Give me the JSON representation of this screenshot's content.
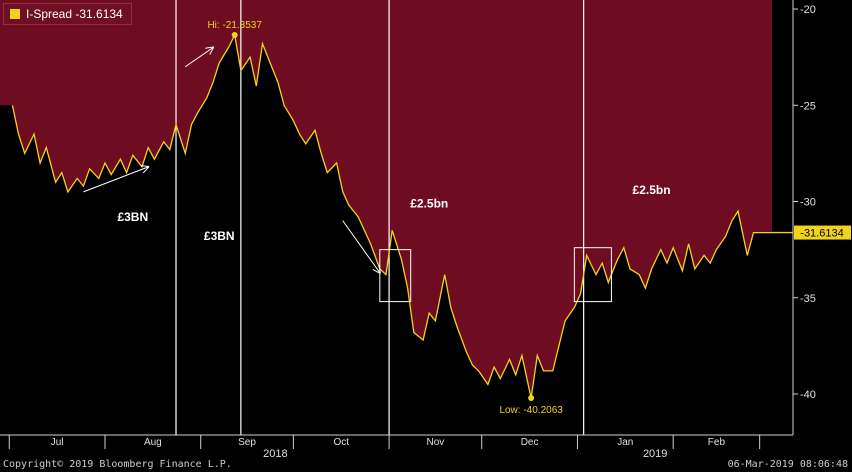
{
  "legend": {
    "label": "I-Spread -31.6134",
    "color": "#f2d31b"
  },
  "footer": {
    "copyright": "Copyright© 2019 Bloomberg Finance L.P.",
    "timestamp": "06-Mar-2019 08:06:48"
  },
  "colors": {
    "fill": "#6e0d22",
    "line": "#f2d31b",
    "background": "#000000",
    "annotation": "#ffffff"
  },
  "chart_data": {
    "type": "area",
    "title": "",
    "xlabel": "",
    "ylabel": "",
    "y_axis_side": "right",
    "ylim": [
      -41,
      -20
    ],
    "y_ticks": [
      -20,
      -25,
      -30,
      -35,
      -40
    ],
    "x_ticks": [
      "Jul",
      "Aug",
      "Sep",
      "Oct",
      "Nov",
      "Dec",
      "Jan",
      "Feb"
    ],
    "year_labels": [
      {
        "label": "2018",
        "after_tick": "Sep"
      },
      {
        "label": "2019",
        "after_tick": "Jan"
      }
    ],
    "last_value": -31.6134,
    "last_value_label": "-31.6134",
    "high": {
      "label": "Hi: -21.3537",
      "value": -21.3537,
      "date": "2018-09-12"
    },
    "low": {
      "label": "Low: -40.2063",
      "value": -40.2063,
      "date": "2018-12-17"
    },
    "series": [
      {
        "values": [
          [
            "2018-07-02",
            -25.0
          ],
          [
            "2018-07-04",
            -26.5
          ],
          [
            "2018-07-06",
            -27.5
          ],
          [
            "2018-07-09",
            -26.5
          ],
          [
            "2018-07-11",
            -28.0
          ],
          [
            "2018-07-13",
            -27.2
          ],
          [
            "2018-07-16",
            -29.0
          ],
          [
            "2018-07-18",
            -28.5
          ],
          [
            "2018-07-20",
            -29.5
          ],
          [
            "2018-07-23",
            -28.8
          ],
          [
            "2018-07-25",
            -29.2
          ],
          [
            "2018-07-27",
            -28.3
          ],
          [
            "2018-07-30",
            -28.8
          ],
          [
            "2018-08-01",
            -28.0
          ],
          [
            "2018-08-03",
            -28.6
          ],
          [
            "2018-08-06",
            -27.8
          ],
          [
            "2018-08-08",
            -28.5
          ],
          [
            "2018-08-10",
            -27.6
          ],
          [
            "2018-08-13",
            -28.2
          ],
          [
            "2018-08-15",
            -27.2
          ],
          [
            "2018-08-17",
            -27.8
          ],
          [
            "2018-08-20",
            -26.9
          ],
          [
            "2018-08-22",
            -27.3
          ],
          [
            "2018-08-24",
            -26.0
          ],
          [
            "2018-08-27",
            -27.5
          ],
          [
            "2018-08-29",
            -26.0
          ],
          [
            "2018-08-31",
            -25.4
          ],
          [
            "2018-09-03",
            -24.6
          ],
          [
            "2018-09-05",
            -23.8
          ],
          [
            "2018-09-07",
            -22.8
          ],
          [
            "2018-09-10",
            -22.0
          ],
          [
            "2018-09-12",
            -21.3537
          ],
          [
            "2018-09-14",
            -23.2
          ],
          [
            "2018-09-17",
            -22.5
          ],
          [
            "2018-09-19",
            -24.0
          ],
          [
            "2018-09-21",
            -21.8
          ],
          [
            "2018-09-24",
            -23.0
          ],
          [
            "2018-09-26",
            -23.8
          ],
          [
            "2018-09-28",
            -25.0
          ],
          [
            "2018-10-01",
            -25.8
          ],
          [
            "2018-10-03",
            -26.5
          ],
          [
            "2018-10-05",
            -27.0
          ],
          [
            "2018-10-08",
            -26.3
          ],
          [
            "2018-10-10",
            -27.5
          ],
          [
            "2018-10-12",
            -28.5
          ],
          [
            "2018-10-15",
            -28.0
          ],
          [
            "2018-10-17",
            -29.5
          ],
          [
            "2018-10-19",
            -30.2
          ],
          [
            "2018-10-22",
            -30.8
          ],
          [
            "2018-10-24",
            -31.5
          ],
          [
            "2018-10-26",
            -32.2
          ],
          [
            "2018-10-29",
            -33.5
          ],
          [
            "2018-10-31",
            -33.8
          ],
          [
            "2018-11-02",
            -31.5
          ],
          [
            "2018-11-05",
            -33.0
          ],
          [
            "2018-11-07",
            -34.5
          ],
          [
            "2018-11-09",
            -36.8
          ],
          [
            "2018-11-12",
            -37.2
          ],
          [
            "2018-11-14",
            -35.8
          ],
          [
            "2018-11-16",
            -36.2
          ],
          [
            "2018-11-19",
            -33.8
          ],
          [
            "2018-11-21",
            -35.5
          ],
          [
            "2018-11-23",
            -36.5
          ],
          [
            "2018-11-26",
            -37.8
          ],
          [
            "2018-11-28",
            -38.5
          ],
          [
            "2018-11-30",
            -38.8
          ],
          [
            "2018-12-03",
            -39.5
          ],
          [
            "2018-12-05",
            -38.6
          ],
          [
            "2018-12-07",
            -39.2
          ],
          [
            "2018-12-10",
            -38.2
          ],
          [
            "2018-12-12",
            -39.0
          ],
          [
            "2018-12-14",
            -38.0
          ],
          [
            "2018-12-17",
            -40.2063
          ],
          [
            "2018-12-19",
            -38.0
          ],
          [
            "2018-12-21",
            -38.8
          ],
          [
            "2018-12-24",
            -38.8
          ],
          [
            "2018-12-26",
            -37.5
          ],
          [
            "2018-12-28",
            -36.2
          ],
          [
            "2018-12-31",
            -35.5
          ],
          [
            "2019-01-02",
            -34.8
          ],
          [
            "2019-01-04",
            -32.8
          ],
          [
            "2019-01-07",
            -33.8
          ],
          [
            "2019-01-09",
            -33.2
          ],
          [
            "2019-01-11",
            -34.2
          ],
          [
            "2019-01-14",
            -33.0
          ],
          [
            "2019-01-16",
            -32.4
          ],
          [
            "2019-01-18",
            -33.5
          ],
          [
            "2019-01-21",
            -33.8
          ],
          [
            "2019-01-23",
            -34.5
          ],
          [
            "2019-01-25",
            -33.5
          ],
          [
            "2019-01-28",
            -32.5
          ],
          [
            "2019-01-30",
            -33.2
          ],
          [
            "2019-02-01",
            -32.4
          ],
          [
            "2019-02-04",
            -33.6
          ],
          [
            "2019-02-06",
            -32.2
          ],
          [
            "2019-02-08",
            -33.5
          ],
          [
            "2019-02-11",
            -32.8
          ],
          [
            "2019-02-13",
            -33.2
          ],
          [
            "2019-02-15",
            -32.5
          ],
          [
            "2019-02-18",
            -31.8
          ],
          [
            "2019-02-20",
            -31.0
          ],
          [
            "2019-02-22",
            -30.5
          ],
          [
            "2019-02-25",
            -32.8
          ],
          [
            "2019-02-27",
            -31.6134
          ],
          [
            "2019-03-05",
            -31.6134
          ]
        ]
      }
    ],
    "annotations": {
      "vlines": [
        "2018-08-24",
        "2018-09-14",
        "2018-11-01",
        "2019-01-03"
      ],
      "texts": [
        {
          "label": "£3BN",
          "x": "2018-08-10",
          "y": -31.0
        },
        {
          "label": "£3BN",
          "x": "2018-09-07",
          "y": -32.0
        },
        {
          "label": "£2.5bn",
          "x": "2018-11-14",
          "y": -30.3
        },
        {
          "label": "£2.5bn",
          "x": "2019-01-25",
          "y": -29.6
        }
      ],
      "boxes": [
        {
          "x0": "2018-10-29",
          "x1": "2018-11-08",
          "y0": -32.5,
          "y1": -35.2
        },
        {
          "x0": "2018-12-31",
          "x1": "2019-01-12",
          "y0": -32.4,
          "y1": -35.2
        }
      ],
      "arrows": [
        {
          "from": [
            "2018-07-25",
            -29.5
          ],
          "to": [
            "2018-08-15",
            -28.2
          ]
        },
        {
          "from": [
            "2018-08-27",
            -23.0
          ],
          "to": [
            "2018-09-05",
            -22.0
          ]
        },
        {
          "from": [
            "2018-10-17",
            -31.0
          ],
          "to": [
            "2018-10-29",
            -33.7
          ]
        }
      ]
    }
  }
}
